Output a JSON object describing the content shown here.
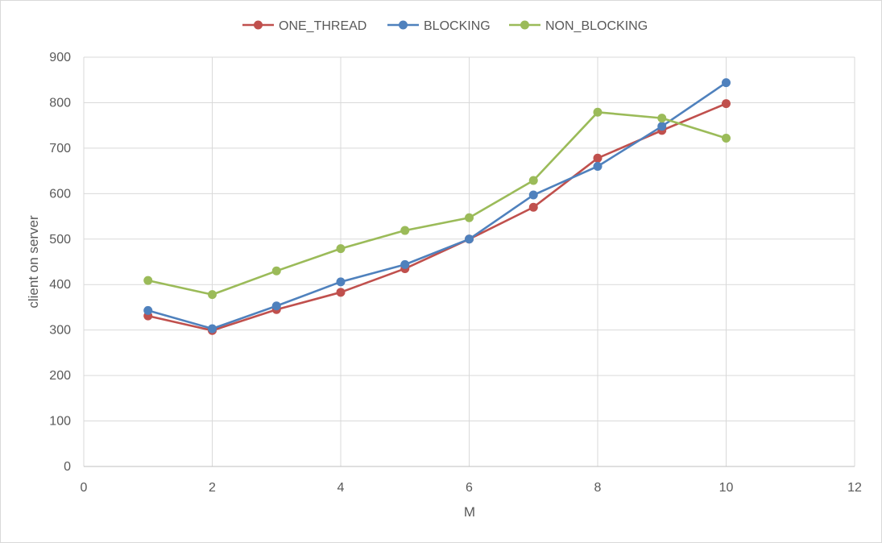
{
  "chart_data": {
    "type": "scatter",
    "title": "",
    "xlabel": "M",
    "ylabel": "client on server",
    "xlim": [
      0,
      12
    ],
    "ylim": [
      0,
      900
    ],
    "xticks": [
      0,
      2,
      4,
      6,
      8,
      10,
      12
    ],
    "yticks": [
      0,
      100,
      200,
      300,
      400,
      500,
      600,
      700,
      800,
      900
    ],
    "grid": true,
    "legend_position": "top",
    "series": [
      {
        "name": "ONE_THREAD",
        "color": "#c0504d",
        "x": [
          1,
          2,
          3,
          4,
          5,
          6,
          7,
          8,
          9,
          10
        ],
        "y": [
          331,
          299,
          345,
          383,
          435,
          500,
          570,
          678,
          739,
          798
        ]
      },
      {
        "name": "BLOCKING",
        "color": "#4f81bd",
        "x": [
          1,
          2,
          3,
          4,
          5,
          6,
          7,
          8,
          9,
          10
        ],
        "y": [
          343,
          303,
          353,
          406,
          444,
          500,
          597,
          660,
          748,
          844
        ]
      },
      {
        "name": "NON_BLOCKING",
        "color": "#9bbb59",
        "x": [
          1,
          2,
          3,
          4,
          5,
          6,
          7,
          8,
          9,
          10
        ],
        "y": [
          409,
          378,
          430,
          479,
          519,
          547,
          629,
          779,
          766,
          722
        ]
      }
    ]
  }
}
